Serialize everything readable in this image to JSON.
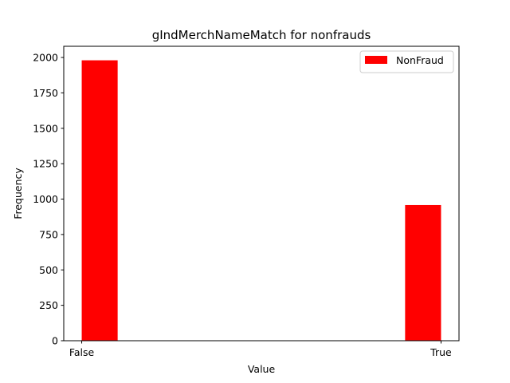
{
  "chart_data": {
    "type": "bar",
    "title": "gIndMerchNameMatch for nonfrauds",
    "xlabel": "Value",
    "ylabel": "Frequency",
    "categories": [
      "False",
      "True"
    ],
    "series": [
      {
        "name": "NonFraud",
        "color": "#ff0000",
        "values": [
          1980,
          958
        ]
      }
    ],
    "ylim": [
      0,
      2079
    ],
    "yticks": [
      0,
      250,
      500,
      750,
      1000,
      1250,
      1500,
      1750,
      2000
    ],
    "ytick_labels": [
      "0",
      "250",
      "500",
      "750",
      "1000",
      "1250",
      "1500",
      "1750",
      "2000"
    ],
    "xlim": [
      -0.05,
      1.05
    ],
    "xticks": [
      0,
      1
    ],
    "bar_ranges": [
      [
        0,
        0.1
      ],
      [
        0.9,
        1.0
      ]
    ],
    "legend": {
      "location": "upper-right",
      "entries": [
        "NonFraud"
      ]
    },
    "grid": false
  }
}
